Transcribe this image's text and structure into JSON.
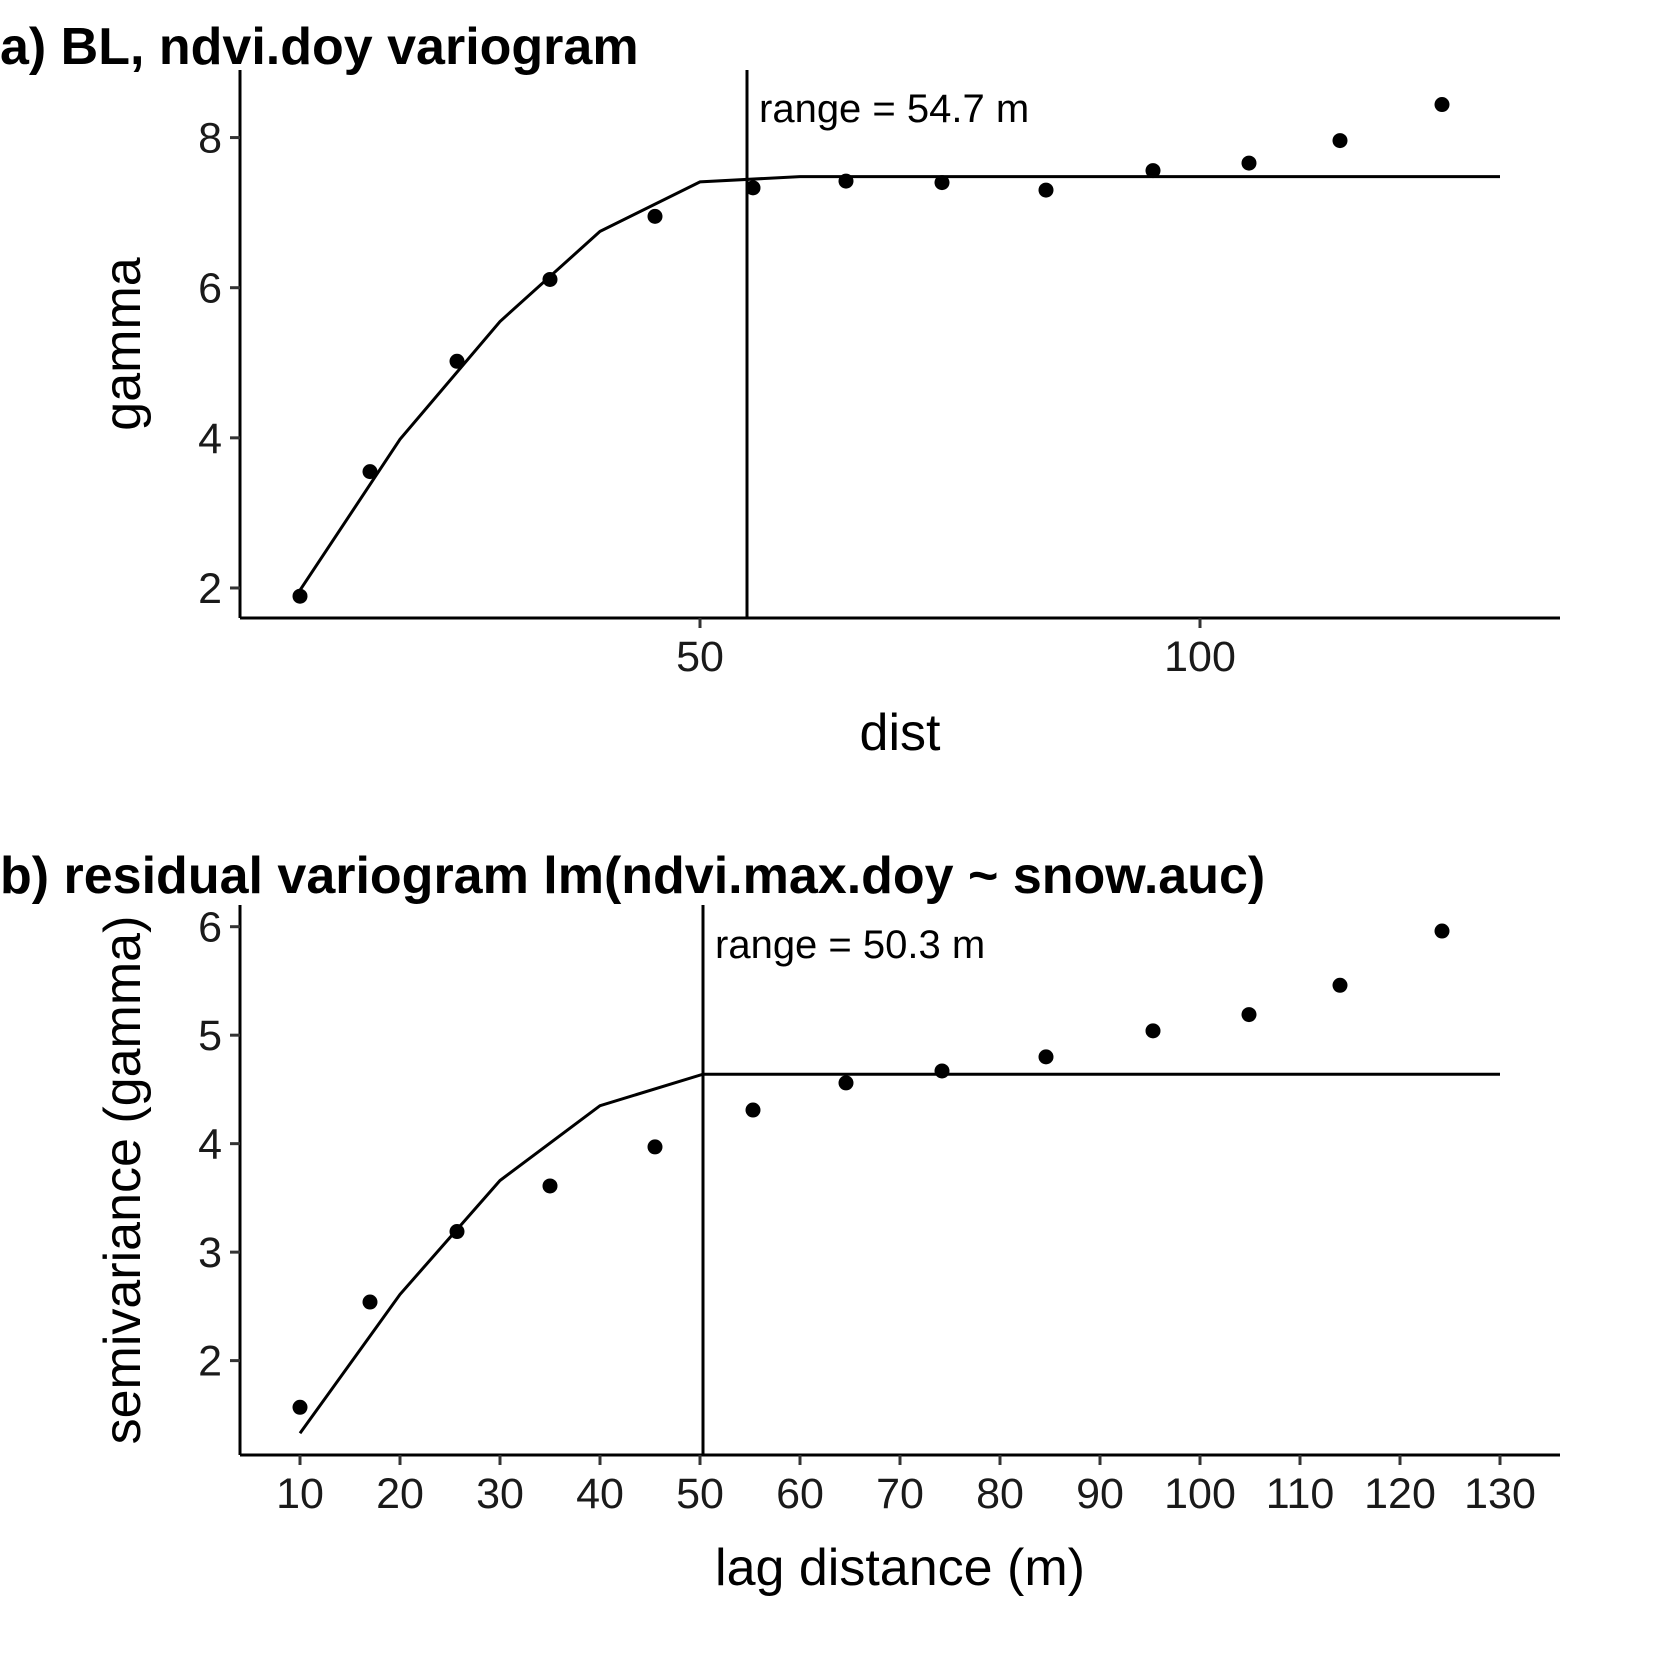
{
  "chart_data": [
    {
      "type": "scatter",
      "panel": "a",
      "title": "a) BL, ndvi.doy variogram",
      "xlabel": "dist",
      "ylabel": "gamma",
      "xlim": [
        4,
        136
      ],
      "ylim": [
        1.6,
        8.9
      ],
      "xticks": [
        50,
        100
      ],
      "yticks": [
        2,
        4,
        6,
        8
      ],
      "grid": false,
      "legend": "none",
      "range_value": 54.7,
      "range_label": "range = 54.7 m",
      "series": [
        {
          "kind": "points",
          "x": [
            10,
            17,
            25.7,
            35,
            45.5,
            55.3,
            64.6,
            74.2,
            84.6,
            95.3,
            104.9,
            114,
            124.2
          ],
          "y": [
            1.89,
            3.55,
            5.02,
            6.11,
            6.95,
            7.33,
            7.42,
            7.4,
            7.3,
            7.56,
            7.66,
            7.96,
            8.44
          ]
        },
        {
          "kind": "fitted-model-line",
          "x": [
            10,
            20,
            30,
            40,
            50,
            60,
            70,
            80,
            90,
            100,
            110,
            120,
            130
          ],
          "y": [
            1.97,
            3.98,
            5.55,
            6.75,
            7.41,
            7.48,
            7.48,
            7.48,
            7.48,
            7.48,
            7.48,
            7.48,
            7.48
          ]
        }
      ]
    },
    {
      "type": "scatter",
      "panel": "b",
      "title": "b) residual variogram lm(ndvi.max.doy ~ snow.auc)",
      "xlabel": "lag distance (m)",
      "ylabel": "semivariance (gamma)",
      "xlim": [
        4,
        136
      ],
      "ylim": [
        1.13,
        6.2
      ],
      "xticks": [
        10,
        20,
        30,
        40,
        50,
        60,
        70,
        80,
        90,
        100,
        110,
        120,
        130
      ],
      "yticks": [
        2,
        3,
        4,
        5,
        6
      ],
      "grid": false,
      "legend": "none",
      "range_value": 50.3,
      "range_label": "range = 50.3 m",
      "series": [
        {
          "kind": "points",
          "x": [
            10,
            17,
            25.7,
            35,
            45.5,
            55.3,
            64.6,
            74.2,
            84.6,
            95.3,
            104.9,
            114,
            124.2
          ],
          "y": [
            1.57,
            2.54,
            3.19,
            3.61,
            3.97,
            4.31,
            4.56,
            4.67,
            4.8,
            5.04,
            5.19,
            5.46,
            5.96
          ]
        },
        {
          "kind": "fitted-model-line",
          "x": [
            10,
            20,
            30,
            40,
            50.3,
            60,
            70,
            80,
            90,
            100,
            110,
            120,
            130
          ],
          "y": [
            1.33,
            2.61,
            3.66,
            4.35,
            4.64,
            4.64,
            4.64,
            4.64,
            4.64,
            4.64,
            4.64,
            4.64,
            4.64
          ]
        }
      ]
    }
  ]
}
